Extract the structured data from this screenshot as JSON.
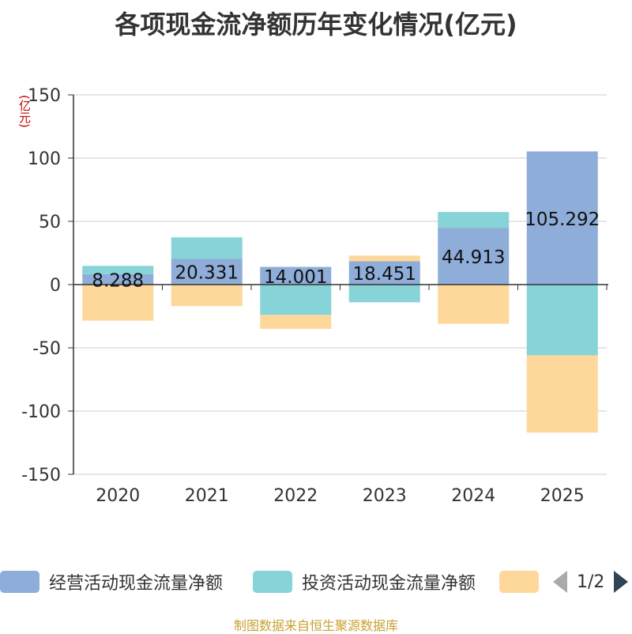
{
  "chart_data": {
    "type": "bar",
    "stacked": true,
    "title": "各项现金流净额历年变化情况(亿元)",
    "unit_label": "(亿元)",
    "categories": [
      "2020",
      "2021",
      "2022",
      "2023",
      "2024",
      "2025"
    ],
    "ylim": [
      -150,
      150
    ],
    "yticks": [
      "150",
      "100",
      "50",
      "0",
      "-50",
      "-100",
      "-150"
    ],
    "grid": true,
    "legend_position": "bottom",
    "series": [
      {
        "name": "经营活动现金流量净额",
        "color": "#8fadd9",
        "values": [
          8.288,
          20.331,
          14.001,
          18.451,
          44.913,
          105.292
        ],
        "labels": [
          "8.288",
          "20.331",
          "14.001",
          "18.451",
          "44.913",
          "105.292"
        ]
      },
      {
        "name": "投资活动现金流量净额",
        "color": "#87d4d8",
        "values": [
          6.5,
          17.0,
          -24.0,
          -14.0,
          12.5,
          -56.0
        ]
      },
      {
        "name": "",
        "color": "#fdd89a",
        "values": [
          -28.5,
          -17.0,
          -11.0,
          4.5,
          -31.0,
          -61.0
        ]
      }
    ]
  },
  "legend": {
    "pager": "1/2"
  },
  "source_text": "制图数据来自恒生聚源数据库"
}
